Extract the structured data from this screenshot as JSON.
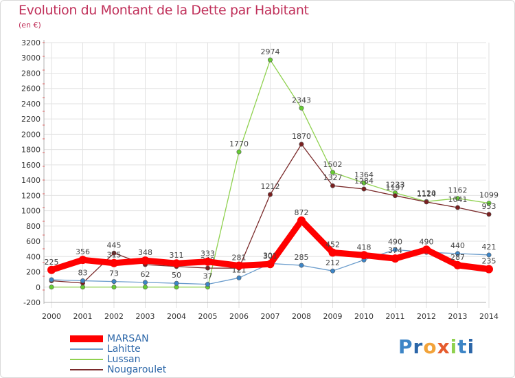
{
  "chart_data": {
    "type": "line",
    "title": "Evolution du Montant de la Dette par Habitant",
    "subtitle": "(en €)",
    "x": [
      "2000",
      "2001",
      "2002",
      "2003",
      "2004",
      "2005",
      "2006",
      "2007",
      "2008",
      "2009",
      "2010",
      "2011",
      "2012",
      "2013",
      "2014"
    ],
    "ylim": [
      -200,
      3200
    ],
    "yticks": [
      -200,
      0,
      200,
      400,
      600,
      800,
      1000,
      1200,
      1400,
      1600,
      1800,
      2000,
      2200,
      2400,
      2600,
      2800,
      3000,
      3200
    ],
    "grid": true,
    "legend_position": "bottom-left",
    "series": [
      {
        "name": "Lussan",
        "color": "#8fd14f",
        "point_color": "#66cc33",
        "values": [
          0,
          0,
          0,
          0,
          0,
          0,
          1770,
          2974,
          2343,
          1502,
          1364,
          1233,
          1120,
          1162,
          1099
        ],
        "labels": [
          "",
          "",
          "",
          "",
          "",
          "",
          "1770",
          "2974",
          "2343",
          "1502",
          "1364",
          "1233",
          "1120",
          "1162",
          "1099"
        ]
      },
      {
        "name": "Nougaroulet",
        "color": "#7a2a2a",
        "point_color": "#7a2020",
        "values": [
          83,
          53,
          445,
          295,
          270,
          249,
          248,
          1212,
          1870,
          1327,
          1284,
          1197,
          1114,
          1041,
          953
        ],
        "labels": [
          "",
          "",
          "445",
          "",
          "",
          "249",
          "",
          "1212",
          "1870",
          "1327",
          "1284",
          "1197",
          "1114",
          "1041",
          "953"
        ]
      },
      {
        "name": "Lahitte",
        "color": "#6a9ccc",
        "point_color": "#3d85c6",
        "values": [
          97,
          83,
          73,
          62,
          50,
          37,
          121,
          309,
          285,
          212,
          355,
          490,
          455,
          440,
          421
        ],
        "labels": [
          "",
          "83",
          "73",
          "62",
          "50",
          "37",
          "121",
          "309",
          "285",
          "212",
          "",
          "490",
          "",
          "440",
          "421"
        ]
      },
      {
        "name": "MARSAN",
        "color": "#ff0000",
        "point_color": "#ff0000",
        "values": [
          225,
          356,
          315,
          348,
          311,
          333,
          281,
          301,
          872,
          452,
          418,
          374,
          490,
          287,
          235
        ],
        "labels": [
          "225",
          "356",
          "315",
          "348",
          "311",
          "333",
          "281",
          "301",
          "872",
          "452",
          "418",
          "374",
          "490",
          "287",
          "235"
        ]
      }
    ]
  },
  "legend": {
    "items": [
      {
        "name": "MARSAN",
        "color": "#ff0000"
      },
      {
        "name": "Lahitte",
        "color": "#6a9ccc"
      },
      {
        "name": "Lussan",
        "color": "#8fd14f"
      },
      {
        "name": "Nougaroulet",
        "color": "#7a2a2a"
      }
    ]
  },
  "logo": {
    "text": "Proxiti"
  }
}
